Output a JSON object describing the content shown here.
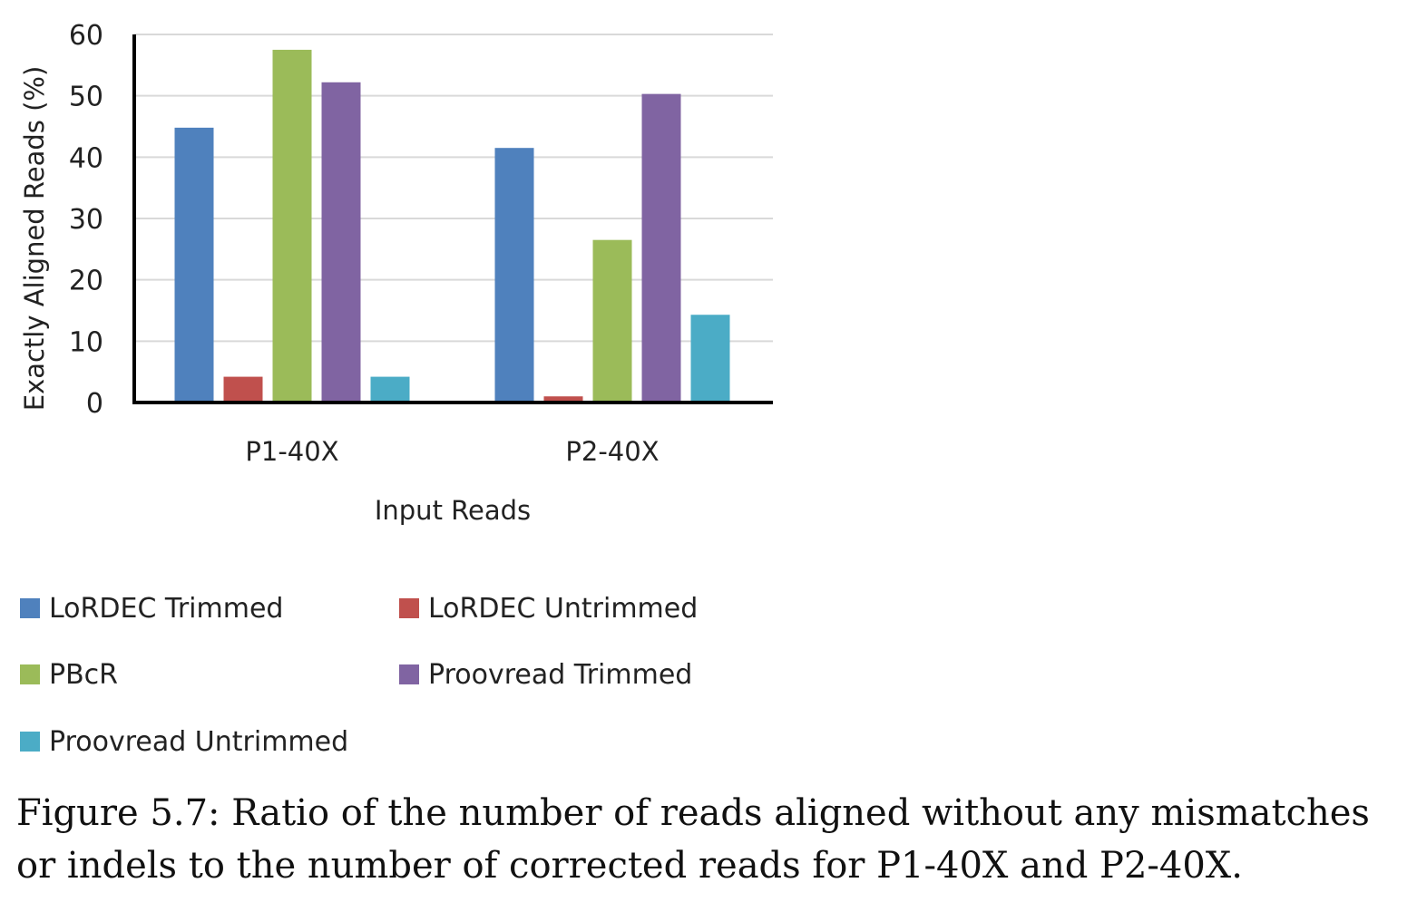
{
  "chart_data": {
    "type": "bar",
    "categories": [
      "P1-40X",
      "P2-40X"
    ],
    "series": [
      {
        "name": "LoRDEC Trimmed",
        "values": [
          44.8,
          41.5
        ],
        "color": "#4f81bd"
      },
      {
        "name": "LoRDEC Untrimmed",
        "values": [
          4.2,
          1.0
        ],
        "color": "#c0504d"
      },
      {
        "name": "PBcR",
        "values": [
          57.5,
          26.5
        ],
        "color": "#9bbb59"
      },
      {
        "name": "Proovread Trimmed",
        "values": [
          52.2,
          50.3
        ],
        "color": "#8064a2"
      },
      {
        "name": "Proovread Untrimmed",
        "values": [
          4.2,
          14.3
        ],
        "color": "#4bacc6"
      }
    ],
    "xlabel": "Input Reads",
    "ylabel": "Exactly Aligned Reads (%)",
    "ylim": [
      0,
      60
    ],
    "yticks": [
      "0",
      "10",
      "20",
      "30",
      "40",
      "50",
      "60"
    ],
    "grid": true,
    "legend_position": "bottom"
  },
  "caption": "Figure 5.7: Ratio of the number of reads aligned without any mismatches or indels to the number of corrected reads for P1-40X and P2-40X."
}
